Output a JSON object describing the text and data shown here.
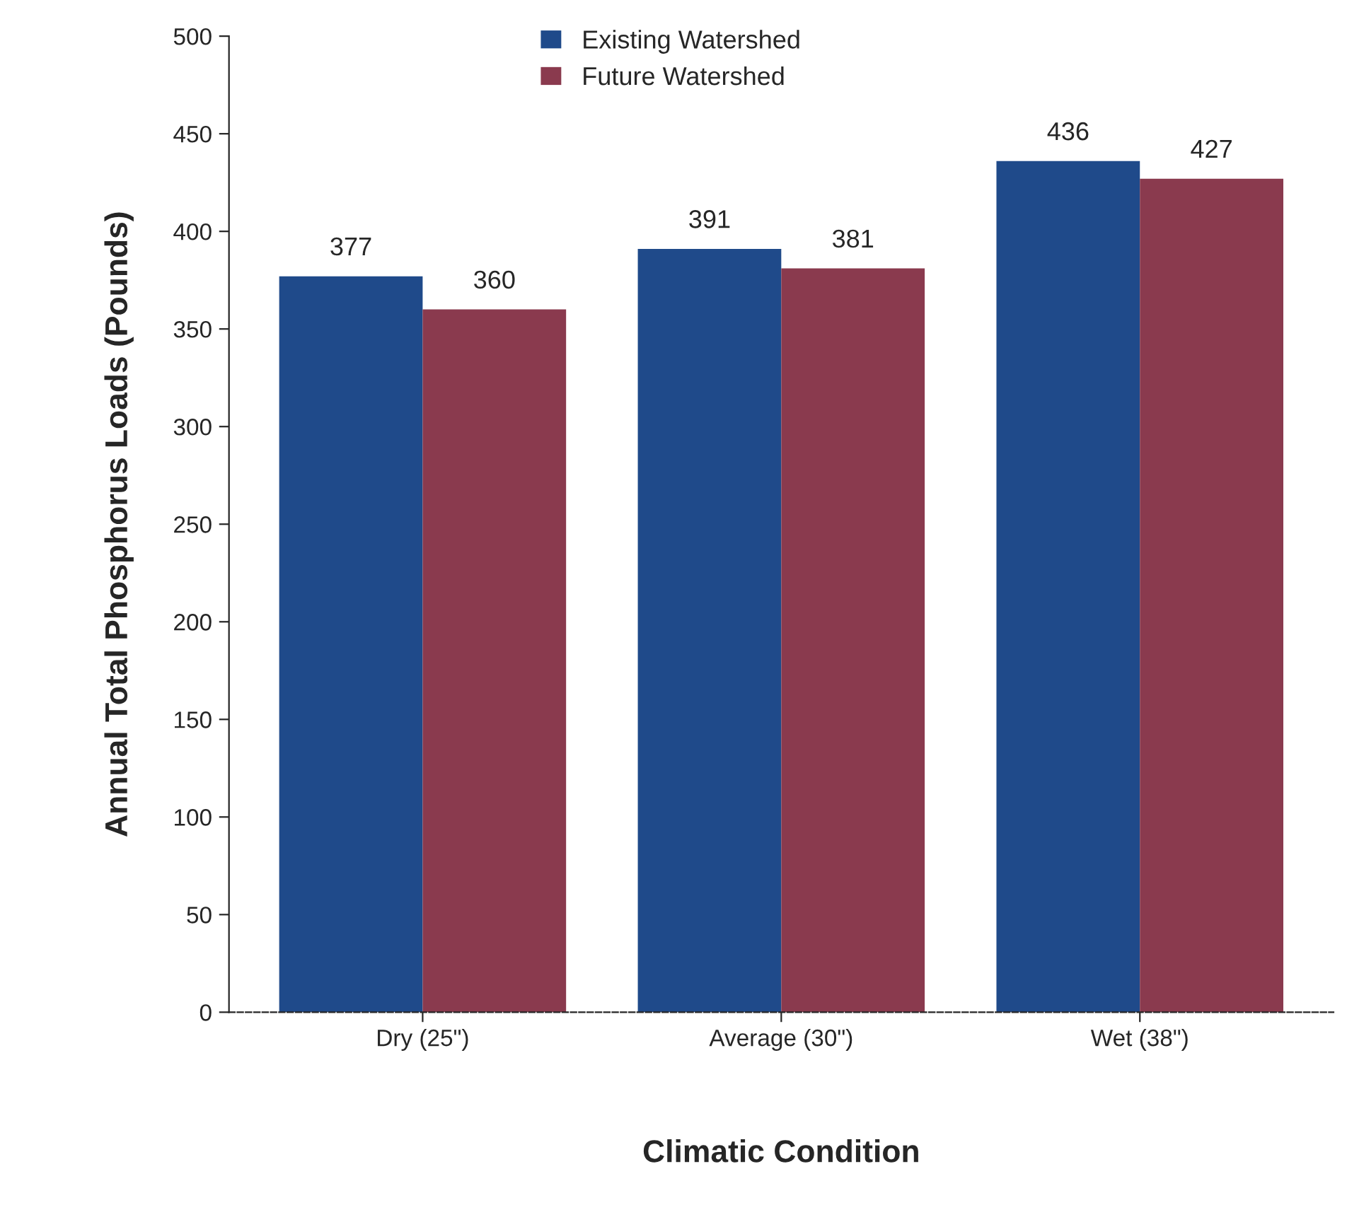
{
  "chart_data": {
    "type": "bar",
    "xlabel": "Climatic Condition",
    "ylabel": "Annual Total Phosphorus Loads (Pounds)",
    "categories": [
      "Dry (25\")",
      "Average (30\")",
      "Wet (38\")"
    ],
    "series": [
      {
        "name": "Existing Watershed",
        "color": "#1f4a8a",
        "values": [
          377,
          391,
          436
        ]
      },
      {
        "name": "Future Watershed",
        "color": "#8a3a4e",
        "values": [
          360,
          381,
          427
        ]
      }
    ],
    "ylim": [
      0,
      500
    ],
    "yticks": [
      0,
      50,
      100,
      150,
      200,
      250,
      300,
      350,
      400,
      450,
      500
    ],
    "data_labels": true,
    "grid": false,
    "legend": "top"
  }
}
